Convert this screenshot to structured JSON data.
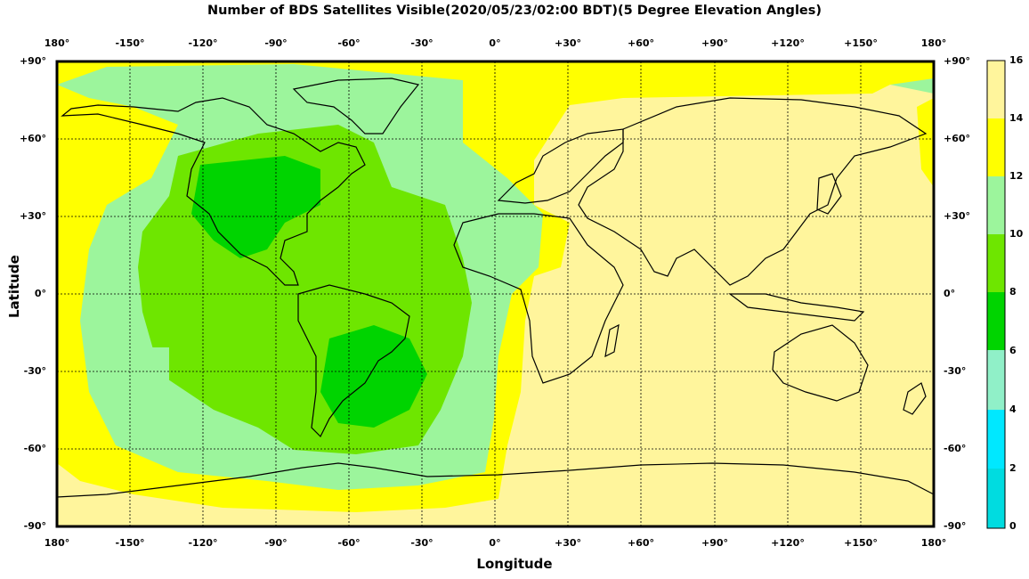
{
  "title": "Number of BDS Satellites Visible(2020/05/23/02:00 BDT)(5 Degree Elevation Angles)",
  "x_axis_label": "Longitude",
  "y_axis_label": "Latitude",
  "lon_ticks": [
    "180°",
    "-150°",
    "-120°",
    "-90°",
    "-60°",
    "-30°",
    "0°",
    "+30°",
    "+60°",
    "+90°",
    "+120°",
    "+150°",
    "180°"
  ],
  "lat_ticks": [
    "+90°",
    "+60°",
    "+30°",
    "0°",
    "-30°",
    "-60°",
    "-90°"
  ],
  "colorbar": {
    "ticks": [
      "16",
      "14",
      "12",
      "10",
      "8",
      "6",
      "4",
      "2",
      "0"
    ],
    "bins": [
      {
        "range": "14-16",
        "color": "#fff59c"
      },
      {
        "range": "12-14",
        "color": "#ffff00"
      },
      {
        "range": "10-12",
        "color": "#9cf59c"
      },
      {
        "range": "8-10",
        "color": "#6ee600"
      },
      {
        "range": "6-8",
        "color": "#00d400"
      },
      {
        "range": "4-6",
        "color": "#90f0c8"
      },
      {
        "range": "2-4",
        "color": "#00e8ff"
      },
      {
        "range": "0-2",
        "color": "#00dce0"
      }
    ]
  },
  "map": {
    "projection": "equirectangular",
    "lon_range": [
      -180,
      180
    ],
    "lat_range": [
      -90,
      90
    ],
    "grid": true,
    "coastlines": true,
    "description_regions": [
      {
        "name": "Eastern hemisphere / Asia-Australia",
        "value_band": "14-16"
      },
      {
        "name": "Americas / Pacific",
        "value_band": "6-12"
      },
      {
        "name": "Polar / edge bands",
        "value_band": "12-14"
      }
    ]
  }
}
